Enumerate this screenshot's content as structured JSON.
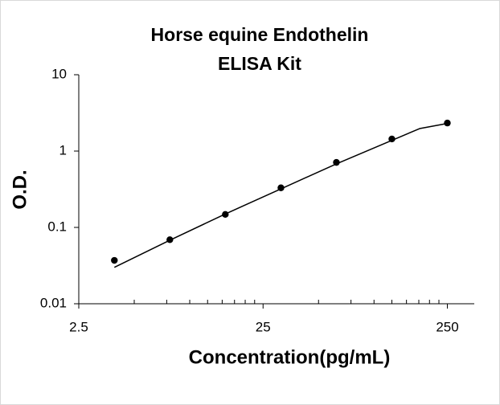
{
  "chart_data": {
    "type": "scatter",
    "title": [
      "Horse equine Endothelin",
      "ELISA Kit"
    ],
    "x_label": "Concentration(pg/mL)",
    "y_label": "O.D.",
    "x": [
      3.9,
      7.8,
      15.6,
      31.25,
      62.5,
      125,
      250
    ],
    "values": [
      0.037,
      0.069,
      0.148,
      0.33,
      0.71,
      1.44,
      2.33
    ],
    "color": "#000000",
    "trendline": {
      "x": [
        3.9,
        7.8,
        15.6,
        31.25,
        62.5,
        125,
        176.8,
        250
      ],
      "values": [
        0.03,
        0.068,
        0.15,
        0.32,
        0.68,
        1.38,
        1.97,
        2.3
      ],
      "color": "#000000"
    },
    "log_x": true,
    "log_y": true,
    "xlim": [
      2.5,
      350
    ],
    "xticks": [
      2.5,
      25,
      250
    ],
    "xminor_ticks": [
      5,
      7.5,
      10,
      12.5,
      15,
      17.5,
      20,
      22.5,
      50,
      75,
      100,
      125,
      150,
      175,
      200,
      225
    ],
    "ylim": [
      0.01,
      10
    ],
    "yticks": [
      0.01,
      0.1,
      1,
      10
    ],
    "grid": false
  }
}
